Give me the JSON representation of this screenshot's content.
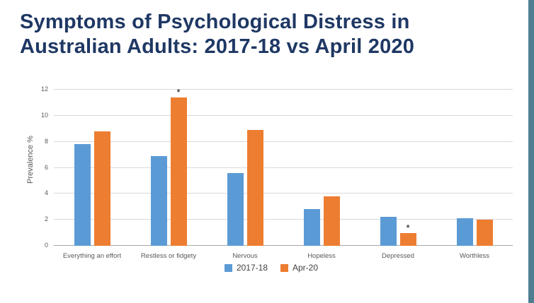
{
  "page": {
    "background": "#ffffff",
    "right_strip_color": "#4e7e90"
  },
  "title": {
    "text": "Symptoms of Psychological Distress in Australian Adults: 2017-18 vs April 2020",
    "color": "#1f3864"
  },
  "chart_data": {
    "type": "bar",
    "title": "Symptoms of Psychological Distress in Australian Adults: 2017-18 vs April 2020",
    "categories": [
      "Everything an effort",
      "Restless or fidgety",
      "Nervous",
      "Hopeless",
      "Depressed",
      "Worthless"
    ],
    "series": [
      {
        "name": "2017-18",
        "color": "#5b9bd5",
        "values": [
          7.8,
          6.9,
          5.6,
          2.8,
          2.2,
          2.1
        ]
      },
      {
        "name": "Apr-20",
        "color": "#ed7d31",
        "values": [
          8.8,
          11.4,
          8.9,
          3.8,
          1.0,
          2.0
        ]
      }
    ],
    "annotations": [
      {
        "series": "Apr-20",
        "category": "Restless or fidgety",
        "text": "*"
      },
      {
        "series": "Apr-20",
        "category": "Depressed",
        "text": "*"
      }
    ],
    "xlabel": "",
    "ylabel": "Prevalence %",
    "ylim": [
      0,
      12
    ],
    "ytick_step": 2,
    "grid": true,
    "legend_position": "bottom",
    "grid_color": "#d9d9d9",
    "axis_text_color": "#595959"
  }
}
